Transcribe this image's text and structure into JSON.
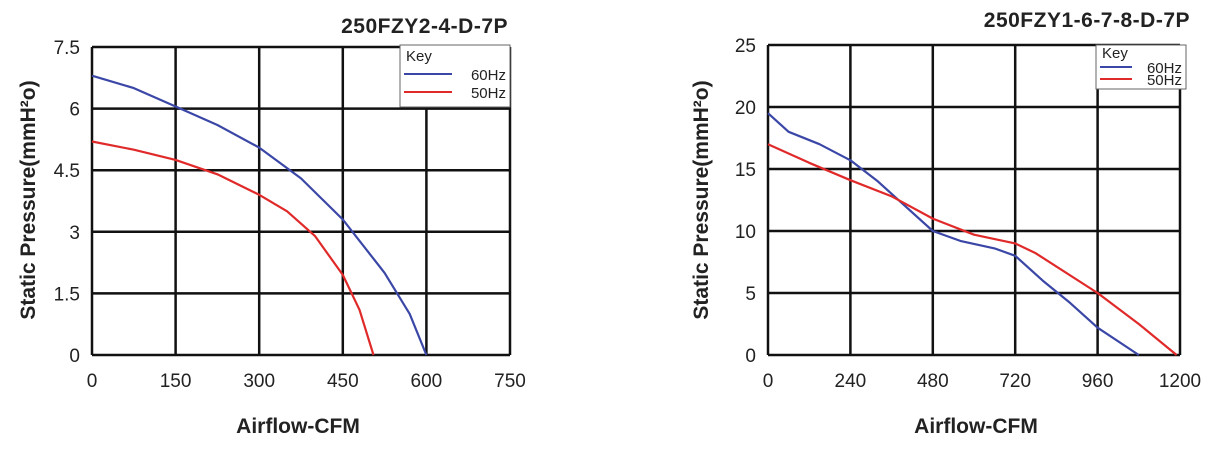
{
  "chart_data": [
    {
      "type": "line",
      "title": "250FZY2-4-D-7P",
      "xlabel": "Airflow-CFM",
      "ylabel": "Static Pressure(mmH²o)",
      "xlim": [
        0,
        750
      ],
      "ylim": [
        0,
        7.5
      ],
      "x_ticks": [
        "0",
        "150",
        "300",
        "450",
        "600",
        "750"
      ],
      "y_ticks": [
        "0",
        "1.5",
        "3",
        "4.5",
        "6",
        "7.5"
      ],
      "grid": true,
      "legend": {
        "title": "Key",
        "placement": "top-right"
      },
      "series": [
        {
          "name": "60Hz",
          "color": "#3b47a6",
          "points": [
            [
              0,
              6.8
            ],
            [
              75,
              6.5
            ],
            [
              150,
              6.05
            ],
            [
              225,
              5.6
            ],
            [
              300,
              5.05
            ],
            [
              375,
              4.3
            ],
            [
              450,
              3.3
            ],
            [
              525,
              2.0
            ],
            [
              570,
              1.0
            ],
            [
              600,
              0.0
            ]
          ]
        },
        {
          "name": "50Hz",
          "color": "#e02a2a",
          "points": [
            [
              0,
              5.2
            ],
            [
              75,
              5.0
            ],
            [
              150,
              4.75
            ],
            [
              225,
              4.4
            ],
            [
              300,
              3.9
            ],
            [
              350,
              3.5
            ],
            [
              400,
              2.9
            ],
            [
              450,
              1.95
            ],
            [
              480,
              1.1
            ],
            [
              505,
              0.0
            ]
          ]
        }
      ]
    },
    {
      "type": "line",
      "title": "250FZY1-6-7-8-D-7P",
      "xlabel": "Airflow-CFM",
      "ylabel": "Static Pressure(mmH²o)",
      "xlim": [
        0,
        1200
      ],
      "ylim": [
        0,
        25
      ],
      "x_ticks": [
        "0",
        "240",
        "480",
        "720",
        "960",
        "1200"
      ],
      "y_ticks": [
        "0",
        "5",
        "10",
        "15",
        "20",
        "25"
      ],
      "grid": true,
      "legend": {
        "title": "Key",
        "placement": "top-right"
      },
      "series": [
        {
          "name": "60Hz",
          "color": "#3b47a6",
          "points": [
            [
              0,
              19.5
            ],
            [
              60,
              18.0
            ],
            [
              150,
              17.0
            ],
            [
              240,
              15.7
            ],
            [
              320,
              14.0
            ],
            [
              400,
              12.0
            ],
            [
              480,
              10.0
            ],
            [
              560,
              9.2
            ],
            [
              660,
              8.6
            ],
            [
              720,
              8.0
            ],
            [
              800,
              6.0
            ],
            [
              880,
              4.2
            ],
            [
              960,
              2.2
            ],
            [
              1080,
              0.0
            ]
          ]
        },
        {
          "name": "50Hz",
          "color": "#e02a2a",
          "points": [
            [
              0,
              17.0
            ],
            [
              120,
              15.5
            ],
            [
              240,
              14.1
            ],
            [
              360,
              12.8
            ],
            [
              480,
              11.0
            ],
            [
              600,
              9.7
            ],
            [
              720,
              9.0
            ],
            [
              780,
              8.2
            ],
            [
              960,
              5.0
            ],
            [
              1080,
              2.5
            ],
            [
              1190,
              0.0
            ]
          ]
        }
      ]
    }
  ]
}
